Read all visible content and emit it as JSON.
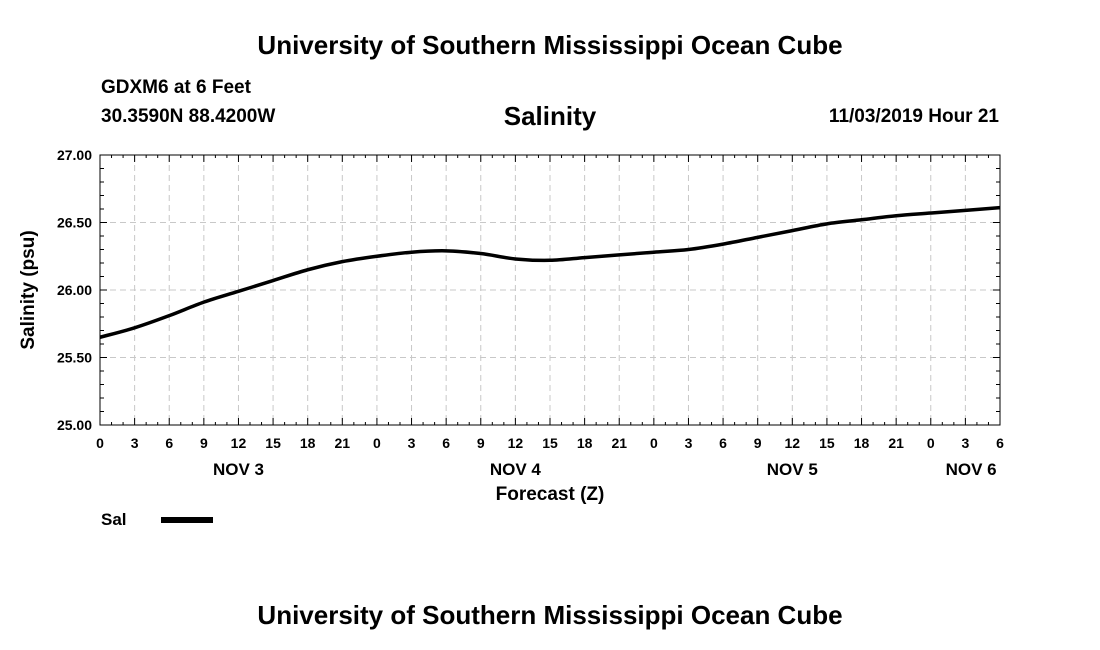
{
  "header": {
    "title": "University of Southern Mississippi Ocean Cube",
    "station": "GDXM6 at 6 Feet",
    "coords": "30.3590N 88.4200W",
    "chart_title": "Salinity",
    "timestamp": "11/03/2019 Hour 21"
  },
  "footer": {
    "title": "University of Southern Mississippi Ocean Cube"
  },
  "legend": {
    "label": "Sal"
  },
  "chart_data": {
    "type": "line",
    "title": "Salinity",
    "xlabel": "Forecast (Z)",
    "ylabel": "Salinity (psu)",
    "ylim": [
      25.0,
      27.0
    ],
    "y_ticks": [
      "25.00",
      "25.50",
      "26.00",
      "26.50",
      "27.00"
    ],
    "x_range_hours": [
      0,
      78
    ],
    "x_tick_step_hours": 3,
    "x_tick_labels": [
      "0",
      "3",
      "6",
      "9",
      "12",
      "15",
      "18",
      "21",
      "0",
      "3",
      "6",
      "9",
      "12",
      "15",
      "18",
      "21",
      "0",
      "3",
      "6",
      "9",
      "12",
      "15",
      "18",
      "21",
      "0",
      "3",
      "6"
    ],
    "day_labels": [
      {
        "label": "NOV 3",
        "hour": 12
      },
      {
        "label": "NOV 4",
        "hour": 36
      },
      {
        "label": "NOV 5",
        "hour": 60
      },
      {
        "label": "NOV 6",
        "hour": 75.5
      }
    ],
    "grid": true,
    "line_color": "#000000",
    "series": [
      {
        "name": "Sal",
        "x": [
          0,
          3,
          6,
          9,
          12,
          15,
          18,
          21,
          24,
          27,
          30,
          33,
          36,
          39,
          42,
          45,
          48,
          51,
          54,
          57,
          60,
          63,
          66,
          69,
          72,
          75,
          78
        ],
        "values": [
          25.65,
          25.72,
          25.81,
          25.91,
          25.99,
          26.07,
          26.15,
          26.21,
          26.25,
          26.28,
          26.29,
          26.27,
          26.23,
          26.22,
          26.24,
          26.26,
          26.28,
          26.3,
          26.34,
          26.39,
          26.44,
          26.49,
          26.52,
          26.55,
          26.57,
          26.59,
          26.61
        ]
      }
    ]
  }
}
